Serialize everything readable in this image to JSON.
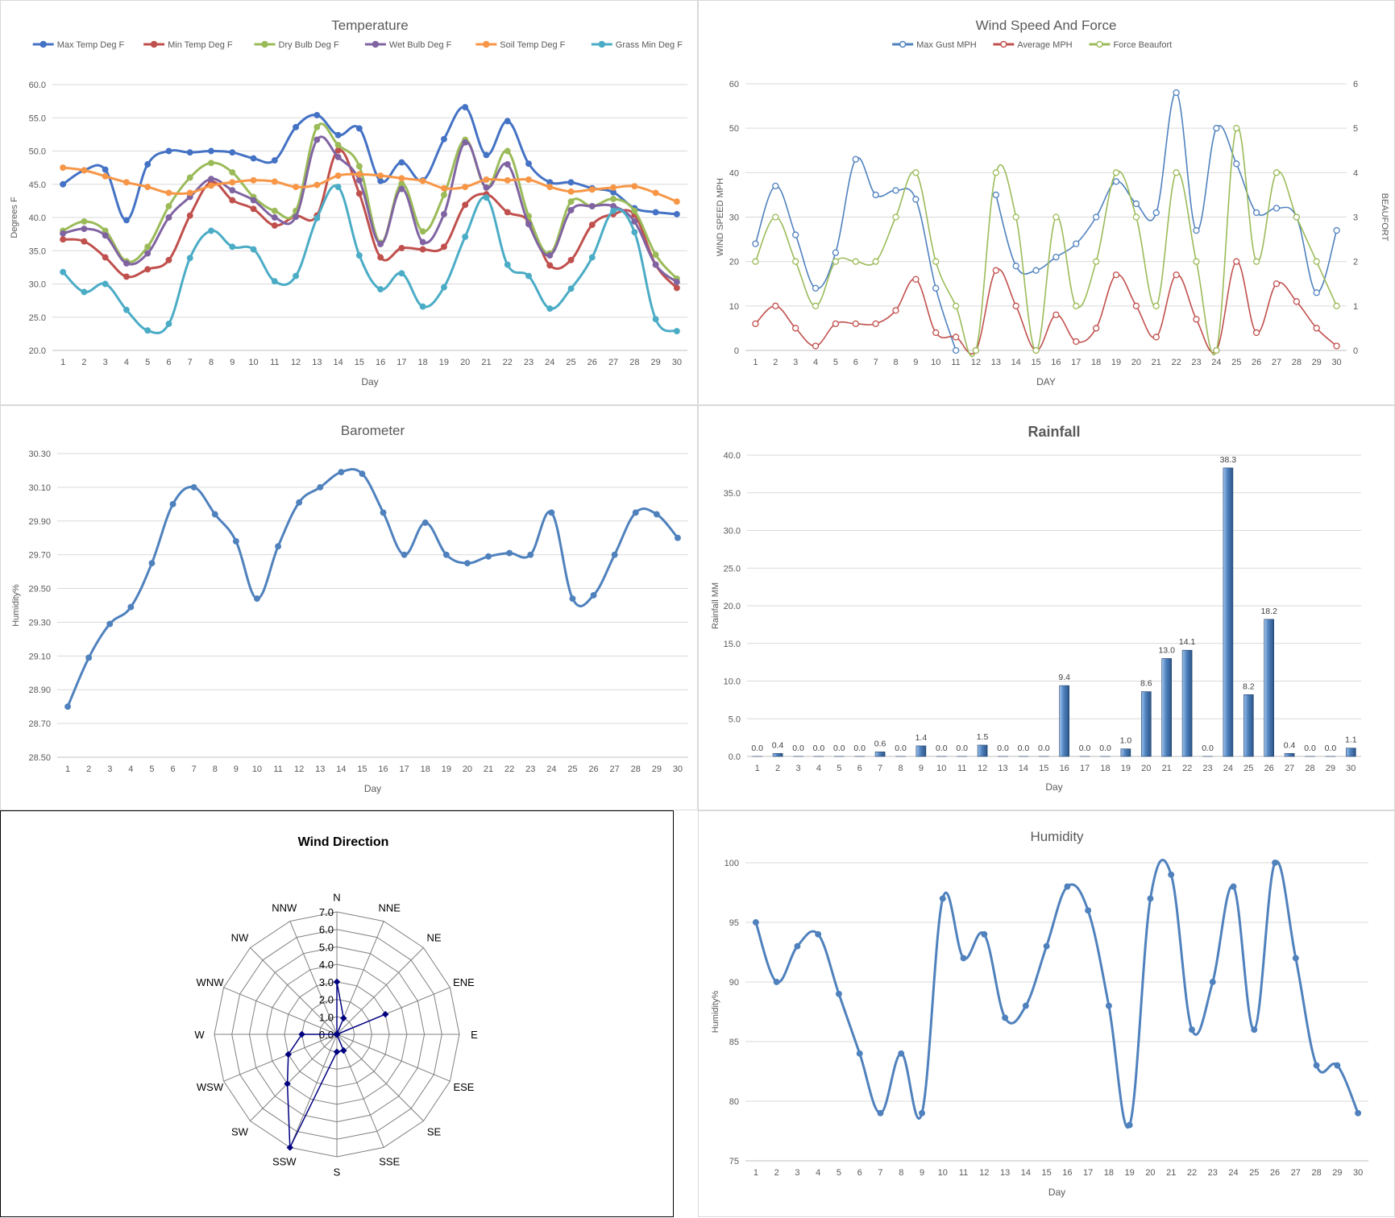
{
  "chart_data": [
    {
      "type": "line",
      "title": "Temperature",
      "xlabel": "Day",
      "ylabel": "Degrees F",
      "ylim": [
        20,
        60
      ],
      "yticks": [
        "20.0",
        "25.0",
        "30.0",
        "35.0",
        "40.0",
        "45.0",
        "50.0",
        "55.0",
        "60.0"
      ],
      "grid": true,
      "legend": "top",
      "categories": [
        "1",
        "2",
        "3",
        "4",
        "5",
        "6",
        "7",
        "8",
        "9",
        "10",
        "11",
        "12",
        "13",
        "14",
        "15",
        "16",
        "17",
        "18",
        "19",
        "20",
        "21",
        "22",
        "23",
        "24",
        "25",
        "26",
        "27",
        "28",
        "29",
        "30"
      ],
      "series": [
        {
          "name": "Max Temp Deg F",
          "color": "#4472c4",
          "values": [
            45.0,
            47.1,
            47.2,
            39.6,
            48.0,
            50.0,
            49.8,
            50.0,
            49.8,
            48.9,
            48.6,
            53.6,
            55.4,
            52.4,
            53.4,
            45.5,
            48.3,
            45.6,
            51.8,
            56.6,
            49.4,
            54.5,
            48.1,
            45.3,
            45.3,
            44.4,
            43.8,
            41.4,
            40.8,
            40.5
          ]
        },
        {
          "name": "Min Temp Deg F",
          "color": "#c0504d",
          "values": [
            36.7,
            36.4,
            34.0,
            31.1,
            32.2,
            33.6,
            40.3,
            45.3,
            42.6,
            41.3,
            38.8,
            40.2,
            40.3,
            50.1,
            43.6,
            34.0,
            35.4,
            35.2,
            35.6,
            41.9,
            43.5,
            40.8,
            39.4,
            32.8,
            33.6,
            38.9,
            40.5,
            40.4,
            32.9,
            29.4
          ]
        },
        {
          "name": "Dry Bulb Deg F",
          "color": "#9bbb59",
          "values": [
            38.0,
            39.4,
            38.0,
            33.4,
            35.6,
            41.7,
            46.0,
            48.2,
            46.8,
            43.1,
            41.0,
            41.0,
            53.6,
            50.9,
            47.7,
            36.2,
            45.1,
            37.9,
            43.4,
            51.7,
            44.5,
            50.0,
            40.2,
            34.6,
            42.4,
            41.7,
            42.8,
            41.0,
            34.4,
            30.8
          ]
        },
        {
          "name": "Wet Bulb Deg F",
          "color": "#8064a2",
          "values": [
            37.6,
            38.3,
            37.3,
            33.1,
            34.6,
            40.0,
            43.1,
            45.8,
            44.1,
            42.6,
            40.0,
            40.1,
            51.7,
            49.1,
            45.6,
            36.0,
            44.3,
            36.3,
            40.5,
            51.3,
            44.5,
            48.0,
            39.0,
            34.3,
            41.1,
            41.7,
            41.7,
            39.4,
            32.9,
            30.3
          ]
        },
        {
          "name": "Soil Temp Deg F",
          "color": "#f79646",
          "values": [
            47.5,
            47.1,
            46.2,
            45.3,
            44.6,
            43.7,
            43.7,
            44.8,
            45.3,
            45.6,
            45.4,
            44.6,
            44.9,
            46.3,
            46.5,
            46.3,
            45.9,
            45.5,
            44.4,
            44.6,
            45.7,
            45.6,
            45.7,
            44.6,
            43.9,
            44.2,
            44.5,
            44.7,
            43.7,
            42.4
          ]
        },
        {
          "name": "Grass Min Deg F",
          "color": "#4bacc6",
          "values": [
            31.8,
            28.8,
            30.0,
            26.1,
            23.0,
            24.0,
            33.9,
            38.0,
            35.6,
            35.2,
            30.4,
            31.2,
            39.9,
            44.6,
            34.3,
            29.2,
            31.6,
            26.6,
            29.5,
            37.1,
            43.0,
            32.9,
            31.2,
            26.3,
            29.3,
            34.0,
            41.0,
            37.8,
            24.7,
            22.9
          ]
        }
      ]
    },
    {
      "type": "line",
      "title": "Wind Speed And Force",
      "xlabel": "DAY",
      "ylabel": "WIND SPEED MPH",
      "y2label": "BEAUFORT",
      "ylim": [
        0,
        60
      ],
      "y2lim": [
        0,
        6
      ],
      "yticks": [
        "0",
        "10",
        "20",
        "30",
        "40",
        "50",
        "60"
      ],
      "y2ticks": [
        "0",
        "1",
        "2",
        "3",
        "4",
        "5",
        "6"
      ],
      "grid": true,
      "legend": "top",
      "categories": [
        "1",
        "2",
        "3",
        "4",
        "5",
        "6",
        "7",
        "8",
        "9",
        "10",
        "11",
        "12",
        "13",
        "14",
        "15",
        "16",
        "17",
        "18",
        "19",
        "20",
        "21",
        "22",
        "23",
        "24",
        "25",
        "26",
        "27",
        "28",
        "29",
        "30"
      ],
      "series": [
        {
          "name": "Max Gust MPH",
          "color": "#4f81bd",
          "axis": "left",
          "values": [
            24,
            37,
            26,
            14,
            22,
            43,
            35,
            36,
            34,
            14,
            0,
            null,
            35,
            19,
            18,
            21,
            24,
            30,
            38,
            33,
            31,
            58,
            27,
            50,
            42,
            31,
            32,
            30,
            13,
            27
          ]
        },
        {
          "name": "Average MPH",
          "color": "#c0504d",
          "axis": "left",
          "values": [
            6,
            10,
            5,
            1,
            6,
            6,
            6,
            9,
            16,
            4,
            3,
            0,
            18,
            10,
            0,
            8,
            2,
            5,
            17,
            10,
            3,
            17,
            7,
            0,
            20,
            4,
            15,
            11,
            5,
            1
          ]
        },
        {
          "name": "Force Beaufort",
          "color": "#9bbb59",
          "axis": "right",
          "values": [
            2,
            3,
            2,
            1,
            2,
            2,
            2,
            3,
            4,
            2,
            1,
            0,
            4,
            3,
            0,
            3,
            1,
            2,
            4,
            3,
            1,
            4,
            2,
            0,
            5,
            2,
            4,
            3,
            2,
            1
          ]
        }
      ]
    },
    {
      "type": "line",
      "title": "Barometer",
      "xlabel": "Day",
      "ylabel": "Humidity%",
      "ylim": [
        28.5,
        30.3
      ],
      "yticks": [
        "28.50",
        "28.70",
        "28.90",
        "29.10",
        "29.30",
        "29.50",
        "29.70",
        "29.90",
        "30.10",
        "30.30"
      ],
      "grid": true,
      "categories": [
        "1",
        "2",
        "3",
        "4",
        "5",
        "6",
        "7",
        "8",
        "9",
        "10",
        "11",
        "12",
        "13",
        "14",
        "15",
        "16",
        "17",
        "18",
        "19",
        "20",
        "21",
        "22",
        "23",
        "24",
        "25",
        "26",
        "27",
        "28",
        "29",
        "30"
      ],
      "series": [
        {
          "color": "#4f81bd",
          "values": [
            28.8,
            29.09,
            29.29,
            29.39,
            29.65,
            30.0,
            30.1,
            29.94,
            29.78,
            29.44,
            29.75,
            30.01,
            30.1,
            30.19,
            30.18,
            29.95,
            29.7,
            29.89,
            29.7,
            29.65,
            29.69,
            29.71,
            29.7,
            29.95,
            29.44,
            29.46,
            29.7,
            29.95,
            29.94,
            29.8
          ]
        }
      ]
    },
    {
      "type": "bar",
      "title": "Rainfall",
      "xlabel": "Day",
      "ylabel": "Rainfall MM",
      "ylim": [
        0,
        40
      ],
      "yticks": [
        "0.0",
        "5.0",
        "10.0",
        "15.0",
        "20.0",
        "25.0",
        "30.0",
        "35.0",
        "40.0"
      ],
      "grid": true,
      "categories": [
        "1",
        "2",
        "3",
        "4",
        "5",
        "6",
        "7",
        "8",
        "9",
        "10",
        "11",
        "12",
        "13",
        "14",
        "15",
        "16",
        "17",
        "18",
        "19",
        "20",
        "21",
        "22",
        "23",
        "24",
        "25",
        "26",
        "27",
        "28",
        "29",
        "30"
      ],
      "values": [
        0.0,
        0.4,
        0.0,
        0.0,
        0.0,
        0.0,
        0.6,
        0.0,
        1.4,
        0.0,
        0.0,
        1.5,
        0.0,
        0.0,
        0.0,
        9.4,
        0.0,
        0.0,
        1.0,
        8.6,
        13.0,
        14.1,
        0.0,
        38.3,
        8.2,
        18.2,
        0.4,
        0.0,
        0.0,
        1.1
      ],
      "data_labels": [
        "0.0",
        "0.4",
        "0.0",
        "0.0",
        "0.0",
        "0.0",
        "0.6",
        "0.0",
        "1.4",
        "0.0",
        "0.0",
        "1.5",
        "0.0",
        "0.0",
        "0.0",
        "9.4",
        "0.0",
        "0.0",
        "1.0",
        "8.6",
        "13.0",
        "14.1",
        "0.0",
        "38.3",
        "8.2",
        "18.2",
        "0.4",
        "0.0",
        "0.0",
        "1.1"
      ],
      "color": "#4f81bd"
    },
    {
      "type": "radar",
      "title": "Wind Direction",
      "rlim": [
        0,
        7
      ],
      "rticks": [
        "0.0",
        "1.0",
        "2.0",
        "3.0",
        "4.0",
        "5.0",
        "6.0",
        "7.0"
      ],
      "categories": [
        "N",
        "NNE",
        "NE",
        "ENE",
        "E",
        "ESE",
        "SE",
        "SSE",
        "S",
        "SSW",
        "SW",
        "WSW",
        "W",
        "WNW",
        "NW",
        "NNW"
      ],
      "values": [
        3,
        1,
        0,
        3,
        0,
        0,
        0,
        1,
        1,
        7,
        4,
        3,
        2,
        0,
        0,
        0
      ],
      "color": "#000080"
    },
    {
      "type": "line",
      "title": "Humidity",
      "xlabel": "Day",
      "ylabel": "Humidity%",
      "ylim": [
        75,
        100
      ],
      "yticks": [
        "75",
        "80",
        "85",
        "90",
        "95",
        "100"
      ],
      "grid": true,
      "categories": [
        "1",
        "2",
        "3",
        "4",
        "5",
        "6",
        "7",
        "8",
        "9",
        "10",
        "11",
        "12",
        "13",
        "14",
        "15",
        "16",
        "17",
        "18",
        "19",
        "20",
        "21",
        "22",
        "23",
        "24",
        "25",
        "26",
        "27",
        "28",
        "29",
        "30"
      ],
      "series": [
        {
          "color": "#4f81bd",
          "values": [
            95,
            90,
            93,
            94,
            89,
            84,
            79,
            84,
            79,
            97,
            92,
            94,
            87,
            88,
            93,
            98,
            96,
            88,
            78,
            97,
            99,
            86,
            90,
            98,
            86,
            100,
            92,
            83,
            83,
            79
          ]
        }
      ]
    }
  ]
}
